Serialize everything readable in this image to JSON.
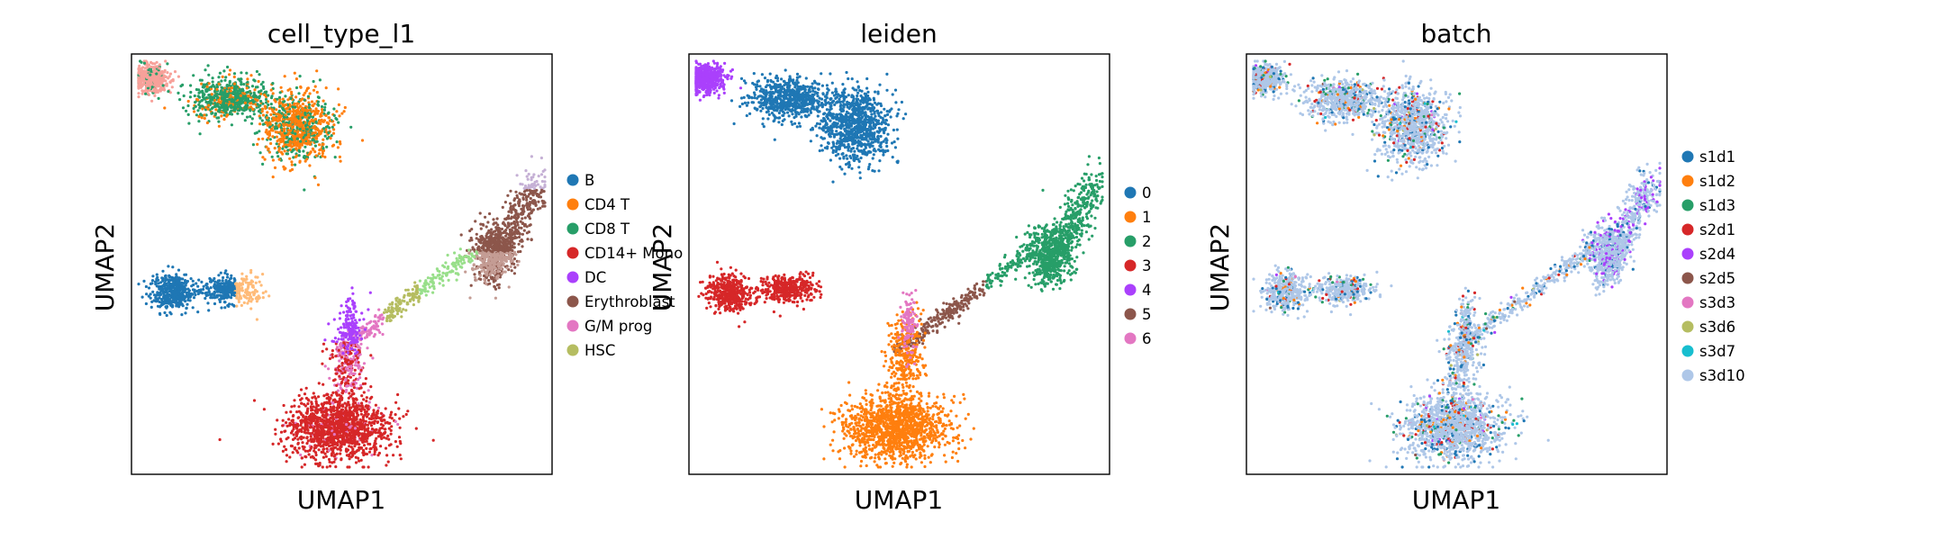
{
  "chart_data": [
    {
      "type": "scatter",
      "title": "cell_type_l1",
      "xlabel": "UMAP1",
      "ylabel": "UMAP2",
      "legend": "right",
      "series": [
        {
          "name": "B",
          "color": "#1f77b4"
        },
        {
          "name": "CD4 T",
          "color": "#ff7f0e"
        },
        {
          "name": "CD8 T",
          "color": "#279e68"
        },
        {
          "name": "CD14+ Mono",
          "color": "#d62728"
        },
        {
          "name": "DC",
          "color": "#aa40fc"
        },
        {
          "name": "Erythroblast",
          "color": "#8c564b"
        },
        {
          "name": "G/M prog",
          "color": "#e377c2"
        },
        {
          "name": "HSC",
          "color": "#b5bd61"
        }
      ],
      "extra_colors": [
        "#f7a19a",
        "#ffbb78",
        "#aec7e8",
        "#98df8a",
        "#c5b0d5",
        "#c49c94"
      ]
    },
    {
      "type": "scatter",
      "title": "leiden",
      "xlabel": "UMAP1",
      "ylabel": "UMAP2",
      "legend": "right",
      "series": [
        {
          "name": "0",
          "color": "#1f77b4"
        },
        {
          "name": "1",
          "color": "#ff7f0e"
        },
        {
          "name": "2",
          "color": "#279e68"
        },
        {
          "name": "3",
          "color": "#d62728"
        },
        {
          "name": "4",
          "color": "#aa40fc"
        },
        {
          "name": "5",
          "color": "#8c564b"
        },
        {
          "name": "6",
          "color": "#e377c2"
        }
      ]
    },
    {
      "type": "scatter",
      "title": "batch",
      "xlabel": "UMAP1",
      "ylabel": "UMAP2",
      "legend": "right",
      "series": [
        {
          "name": "s1d1",
          "color": "#1f77b4"
        },
        {
          "name": "s1d2",
          "color": "#ff7f0e"
        },
        {
          "name": "s1d3",
          "color": "#279e68"
        },
        {
          "name": "s2d1",
          "color": "#d62728"
        },
        {
          "name": "s2d4",
          "color": "#aa40fc"
        },
        {
          "name": "s2d5",
          "color": "#8c564b"
        },
        {
          "name": "s3d3",
          "color": "#e377c2"
        },
        {
          "name": "s3d6",
          "color": "#b5bd61"
        },
        {
          "name": "s3d7",
          "color": "#17becf"
        },
        {
          "name": "s3d10",
          "color": "#aec7e8"
        }
      ]
    }
  ]
}
